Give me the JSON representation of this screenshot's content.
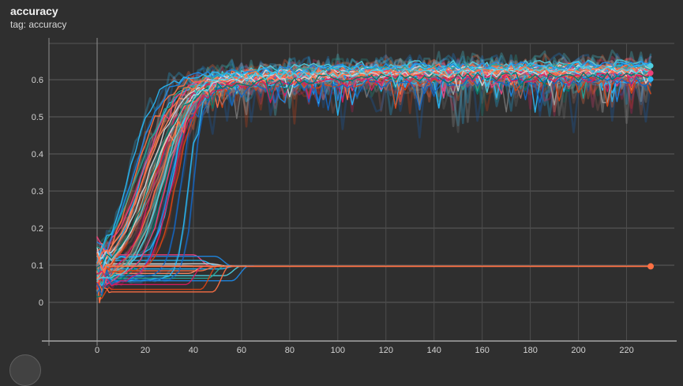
{
  "header": {
    "title": "accuracy",
    "subtitle": "tag: accuracy"
  },
  "theme": {
    "background": "#2f2f2f",
    "grid_vertical": "#4e4e4e",
    "grid_horizontal": "#5c5c5c",
    "axis_bottom": "#a6a6a6",
    "axis_emphasis": "#8f8f8f",
    "plot_border_top": "#545454",
    "tick_label": "#d2d2d2",
    "title_color": "#f2f2f2",
    "subtitle_color": "#d8d8d8"
  },
  "chart_data": {
    "type": "line",
    "title": "accuracy",
    "tag": "accuracy",
    "xlabel": "",
    "ylabel": "",
    "xlim": [
      -20,
      242
    ],
    "ylim": [
      -0.104,
      0.698
    ],
    "x_ticks": [
      0,
      20,
      40,
      60,
      80,
      100,
      120,
      140,
      160,
      180,
      200,
      220
    ],
    "y_ticks": [
      0,
      0.1,
      0.2,
      0.3,
      0.4,
      0.5,
      0.6
    ],
    "grid": true,
    "legend": "none",
    "seed": 7,
    "x_max": 230,
    "plateau_value_range": [
      0.595,
      0.645
    ],
    "converge_value": 0.098,
    "palette": [
      "#ff7043",
      "#d84315",
      "#ff8a65",
      "#29b6f6",
      "#4dd0e1",
      "#1e88e5",
      "#1565c0",
      "#26a69a",
      "#00796b",
      "#ec407a",
      "#d81b60",
      "#cfd8dc",
      "#9e9e9e",
      "#757575",
      "#a1665e"
    ],
    "runs_rising": [
      {
        "c": 3,
        "s": 0.06,
        "f": 0.63,
        "m": 18,
        "r": 0.16,
        "n": 0.012,
        "p": 0.07,
        "a": 0.06
      },
      {
        "c": 4,
        "s": 0.08,
        "f": 0.645,
        "m": 24,
        "r": 0.14,
        "n": 0.012,
        "p": 0.06,
        "a": 0.05,
        "dot": true
      },
      {
        "c": 5,
        "s": 0.05,
        "f": 0.615,
        "m": 30,
        "r": 0.22,
        "n": 0.012,
        "p": 0.08,
        "a": 0.07
      },
      {
        "c": 6,
        "s": 0.07,
        "f": 0.605,
        "m": 35,
        "r": 0.38,
        "n": 0.01,
        "p": 0.08,
        "a": 0.08
      },
      {
        "c": 0,
        "s": 0.09,
        "f": 0.635,
        "m": 16,
        "r": 0.18,
        "n": 0.012,
        "p": 0.06,
        "a": 0.05
      },
      {
        "c": 1,
        "s": 0.04,
        "f": 0.62,
        "m": 22,
        "r": 0.13,
        "n": 0.013,
        "p": 0.08,
        "a": 0.07
      },
      {
        "c": 2,
        "s": 0.1,
        "f": 0.625,
        "m": 20,
        "r": 0.15,
        "n": 0.011,
        "p": 0.05,
        "a": 0.05
      },
      {
        "c": 7,
        "s": 0.06,
        "f": 0.618,
        "m": 26,
        "r": 0.17,
        "n": 0.012,
        "p": 0.07,
        "a": 0.06
      },
      {
        "c": 8,
        "s": 0.05,
        "f": 0.608,
        "m": 28,
        "r": 0.2,
        "n": 0.011,
        "p": 0.07,
        "a": 0.07
      },
      {
        "c": 9,
        "s": 0.11,
        "f": 0.628,
        "m": 19,
        "r": 0.16,
        "n": 0.012,
        "p": 0.06,
        "a": 0.06,
        "dot": true
      },
      {
        "c": 10,
        "s": 0.07,
        "f": 0.612,
        "m": 24,
        "r": 0.18,
        "n": 0.012,
        "p": 0.07,
        "a": 0.06
      },
      {
        "c": 11,
        "s": 0.08,
        "f": 0.632,
        "m": 21,
        "r": 0.14,
        "n": 0.01,
        "p": 0.05,
        "a": 0.07
      },
      {
        "c": 12,
        "s": 0.06,
        "f": 0.61,
        "m": 27,
        "r": 0.16,
        "n": 0.012,
        "p": 0.07,
        "a": 0.08
      },
      {
        "c": 14,
        "s": 0.05,
        "f": 0.6,
        "m": 23,
        "r": 0.12,
        "n": 0.013,
        "p": 0.08,
        "a": 0.06
      },
      {
        "c": 3,
        "s": 0.12,
        "f": 0.622,
        "m": 32,
        "r": 0.28,
        "n": 0.012,
        "p": 0.08,
        "a": 0.08
      },
      {
        "c": 3,
        "s": 0.06,
        "f": 0.603,
        "m": 38,
        "r": 0.45,
        "n": 0.011,
        "p": 0.08,
        "a": 0.09,
        "dot": true
      },
      {
        "c": 5,
        "s": 0.09,
        "f": 0.64,
        "m": 15,
        "r": 0.17,
        "n": 0.011,
        "p": 0.05,
        "a": 0.05
      },
      {
        "c": 0,
        "s": 0.05,
        "f": 0.617,
        "m": 25,
        "r": 0.15,
        "n": 0.012,
        "p": 0.07,
        "a": 0.06
      },
      {
        "c": 1,
        "s": 0.08,
        "f": 0.6,
        "m": 33,
        "r": 0.25,
        "n": 0.013,
        "p": 0.09,
        "a": 0.08
      },
      {
        "c": 9,
        "s": 0.06,
        "f": 0.618,
        "m": 29,
        "r": 0.19,
        "n": 0.012,
        "p": 0.06,
        "a": 0.06
      },
      {
        "c": 7,
        "s": 0.1,
        "f": 0.635,
        "m": 17,
        "r": 0.14,
        "n": 0.011,
        "p": 0.06,
        "a": 0.05
      },
      {
        "c": 13,
        "s": 0.07,
        "f": 0.605,
        "m": 26,
        "r": 0.16,
        "n": 0.012,
        "p": 0.08,
        "a": 0.09
      },
      {
        "c": 2,
        "s": 0.04,
        "f": 0.622,
        "m": 21,
        "r": 0.13,
        "n": 0.012,
        "p": 0.06,
        "a": 0.06
      },
      {
        "c": 3,
        "s": 0.08,
        "f": 0.638,
        "m": 13,
        "r": 0.19,
        "n": 0.011,
        "p": 0.06,
        "a": 0.05
      },
      {
        "c": 6,
        "s": 0.06,
        "f": 0.595,
        "m": 40,
        "r": 0.5,
        "n": 0.012,
        "p": 0.09,
        "a": 0.09
      },
      {
        "c": 11,
        "s": 0.09,
        "f": 0.62,
        "m": 23,
        "r": 0.15,
        "n": 0.01,
        "p": 0.05,
        "a": 0.06
      },
      {
        "c": 10,
        "s": 0.05,
        "f": 0.607,
        "m": 31,
        "r": 0.21,
        "n": 0.012,
        "p": 0.07,
        "a": 0.07
      },
      {
        "c": 0,
        "s": 0.07,
        "f": 0.628,
        "m": 19,
        "r": 0.16,
        "n": 0.012,
        "p": 0.06,
        "a": 0.06
      },
      {
        "c": 8,
        "s": 0.08,
        "f": 0.612,
        "m": 22,
        "r": 0.15,
        "n": 0.012,
        "p": 0.07,
        "a": 0.06
      },
      {
        "c": 4,
        "s": 0.05,
        "f": 0.625,
        "m": 27,
        "r": 0.17,
        "n": 0.012,
        "p": 0.06,
        "a": 0.06
      }
    ],
    "runs_flat": [
      {
        "c": 9,
        "flat": 0.128,
        "end": 49
      },
      {
        "c": 5,
        "flat": 0.124,
        "end": 58
      },
      {
        "c": 3,
        "flat": 0.113,
        "end": 52
      },
      {
        "c": 11,
        "flat": 0.104,
        "end": 56
      },
      {
        "c": 12,
        "flat": 0.1,
        "end": 44
      },
      {
        "c": 3,
        "flat": 0.09,
        "end": 60
      },
      {
        "c": 0,
        "flat": 0.085,
        "end": 52
      },
      {
        "c": 2,
        "flat": 0.078,
        "end": 47
      },
      {
        "c": 4,
        "flat": 0.072,
        "end": 62
      },
      {
        "c": 7,
        "flat": 0.065,
        "end": 55
      },
      {
        "c": 5,
        "flat": 0.058,
        "end": 65
      },
      {
        "c": 10,
        "flat": 0.048,
        "end": 46
      },
      {
        "c": 1,
        "flat": 0.035,
        "end": 52
      },
      {
        "c": 0,
        "flat": 0.028,
        "end": 57
      }
    ],
    "run_flat_long": {
      "c": 0,
      "flat": 0.097,
      "end": 230,
      "dot": true
    }
  }
}
